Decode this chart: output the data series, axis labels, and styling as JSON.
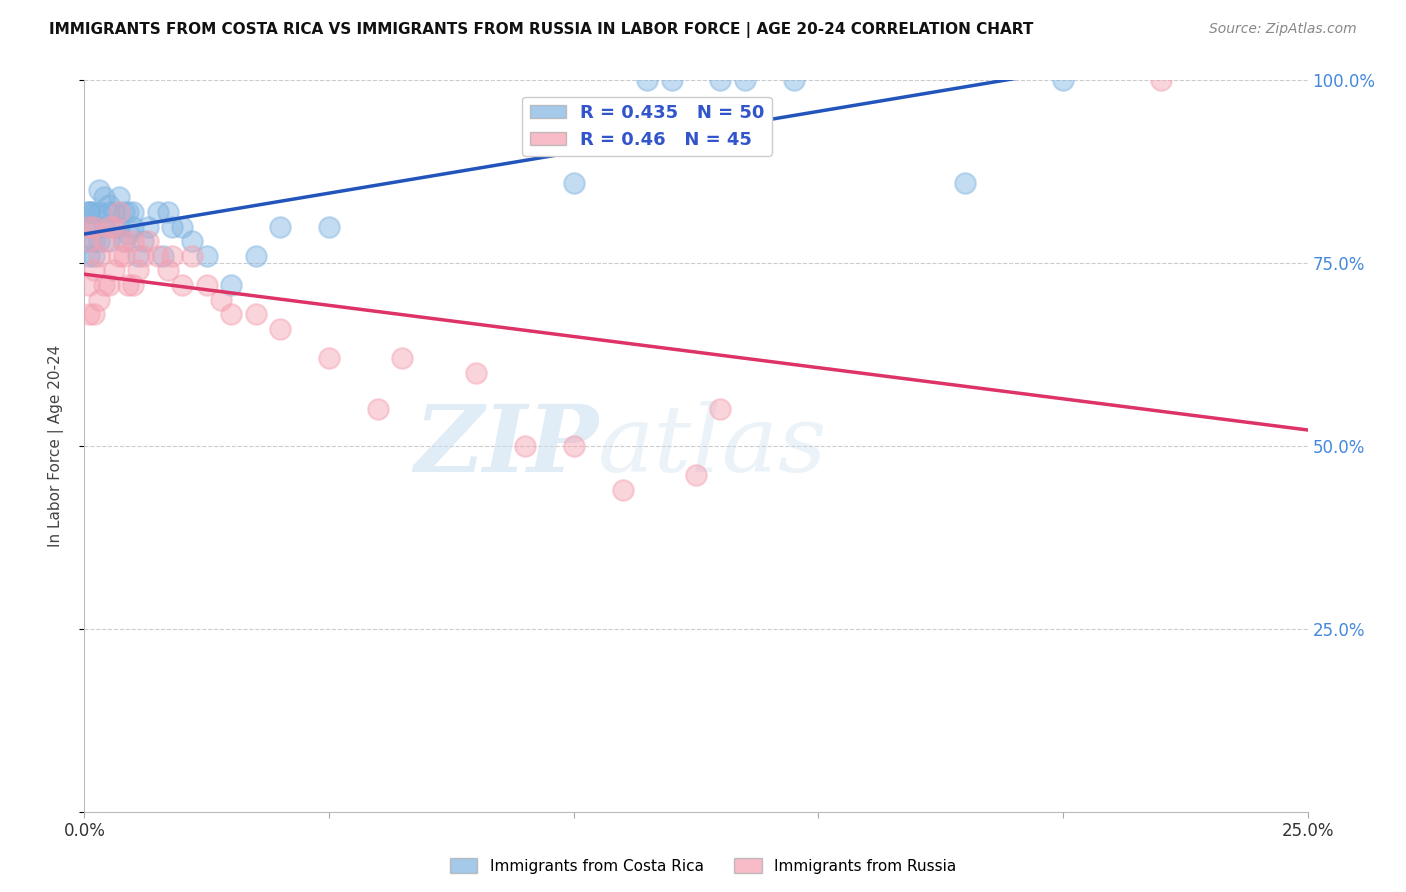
{
  "title": "IMMIGRANTS FROM COSTA RICA VS IMMIGRANTS FROM RUSSIA IN LABOR FORCE | AGE 20-24 CORRELATION CHART",
  "source": "Source: ZipAtlas.com",
  "ylabel": "In Labor Force | Age 20-24",
  "x_min": 0.0,
  "x_max": 0.25,
  "y_min": 0.0,
  "y_max": 1.0,
  "grid_color": "#cccccc",
  "background_color": "#ffffff",
  "blue_color": "#7eb3e0",
  "pink_color": "#f4a0b0",
  "blue_line_color": "#2255bb",
  "pink_line_color": "#dd3366",
  "R_blue": 0.435,
  "N_blue": 50,
  "R_pink": 0.46,
  "N_pink": 45,
  "watermark_zip": "ZIP",
  "watermark_atlas": "atlas",
  "costa_rica_x": [
    0.001,
    0.001,
    0.001,
    0.001,
    0.001,
    0.001,
    0.002,
    0.002,
    0.002,
    0.002,
    0.003,
    0.003,
    0.003,
    0.004,
    0.004,
    0.005,
    0.005,
    0.005,
    0.006,
    0.006,
    0.007,
    0.007,
    0.008,
    0.008,
    0.009,
    0.009,
    0.01,
    0.01,
    0.011,
    0.012,
    0.013,
    0.015,
    0.016,
    0.017,
    0.018,
    0.02,
    0.022,
    0.025,
    0.03,
    0.035,
    0.04,
    0.05,
    0.1,
    0.115,
    0.12,
    0.13,
    0.135,
    0.145,
    0.18,
    0.2
  ],
  "costa_rica_y": [
    0.82,
    0.82,
    0.8,
    0.82,
    0.78,
    0.76,
    0.82,
    0.8,
    0.78,
    0.76,
    0.85,
    0.82,
    0.78,
    0.84,
    0.8,
    0.83,
    0.82,
    0.78,
    0.82,
    0.8,
    0.84,
    0.8,
    0.82,
    0.78,
    0.82,
    0.79,
    0.82,
    0.8,
    0.76,
    0.78,
    0.8,
    0.82,
    0.76,
    0.82,
    0.8,
    0.8,
    0.78,
    0.76,
    0.72,
    0.76,
    0.8,
    0.8,
    0.86,
    1.0,
    1.0,
    1.0,
    1.0,
    1.0,
    0.86,
    1.0
  ],
  "russia_x": [
    0.001,
    0.001,
    0.001,
    0.001,
    0.002,
    0.002,
    0.002,
    0.003,
    0.003,
    0.004,
    0.004,
    0.005,
    0.005,
    0.006,
    0.006,
    0.007,
    0.007,
    0.008,
    0.008,
    0.009,
    0.01,
    0.01,
    0.011,
    0.012,
    0.013,
    0.015,
    0.017,
    0.018,
    0.02,
    0.022,
    0.025,
    0.028,
    0.03,
    0.035,
    0.04,
    0.05,
    0.06,
    0.065,
    0.08,
    0.09,
    0.1,
    0.11,
    0.125,
    0.13,
    0.22
  ],
  "russia_y": [
    0.68,
    0.72,
    0.78,
    0.8,
    0.68,
    0.74,
    0.8,
    0.7,
    0.76,
    0.72,
    0.78,
    0.72,
    0.8,
    0.74,
    0.8,
    0.76,
    0.82,
    0.76,
    0.78,
    0.72,
    0.72,
    0.78,
    0.74,
    0.76,
    0.78,
    0.76,
    0.74,
    0.76,
    0.72,
    0.76,
    0.72,
    0.7,
    0.68,
    0.68,
    0.66,
    0.62,
    0.55,
    0.62,
    0.6,
    0.5,
    0.5,
    0.44,
    0.46,
    0.55,
    1.0
  ]
}
